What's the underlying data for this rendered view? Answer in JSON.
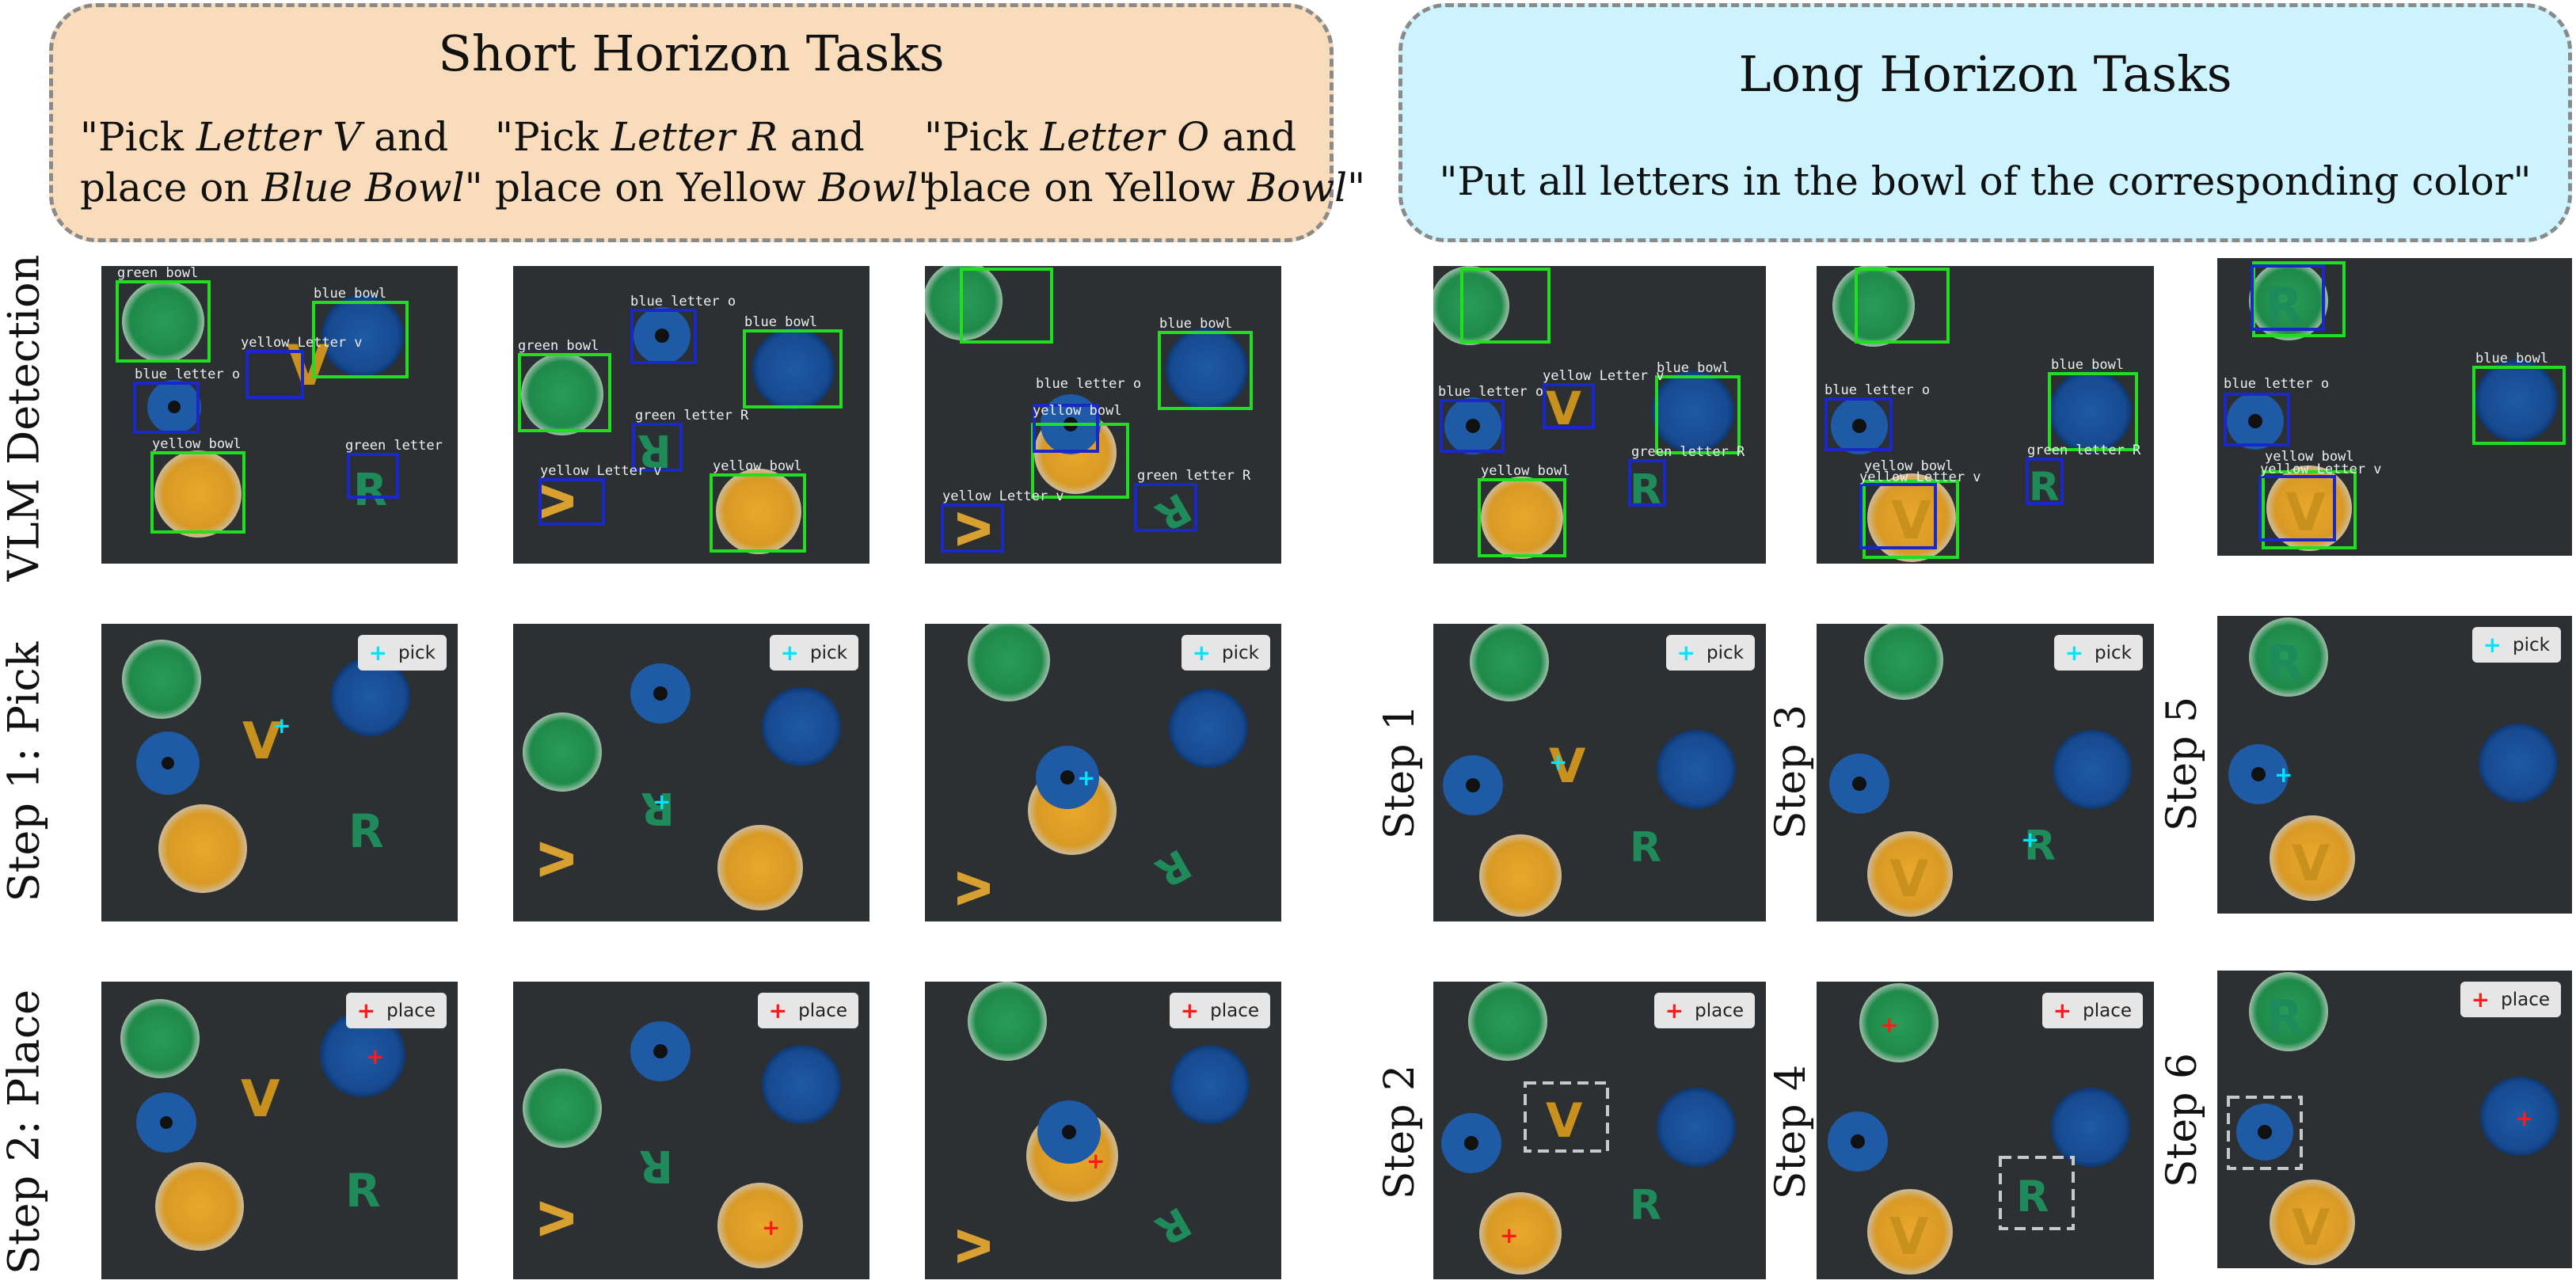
{
  "short_panel": {
    "title": "Short Horizon Tasks",
    "tasks": [
      {
        "l1a": "\"Pick ",
        "l1b": "Letter V",
        "l1c": " and",
        "l2a": "place on ",
        "l2b": "Blue Bowl",
        "l2c": "\""
      },
      {
        "l1a": "\"Pick ",
        "l1b": "Letter R",
        "l1c": " and",
        "l2a": "place on Yellow ",
        "l2b": "Bowl",
        "l2c": "\""
      },
      {
        "l1a": "\"Pick ",
        "l1b": "Letter O",
        "l1c": " and",
        "l2a": "place on Yellow ",
        "l2b": "Bowl",
        "l2c": "\""
      }
    ]
  },
  "long_panel": {
    "title": "Long Horizon Tasks",
    "instruction": "\"Put all letters in the bowl of the corresponding color\""
  },
  "row_labels": {
    "detection": "VLM Detection",
    "pick": "Step 1: Pick",
    "place": "Step 2: Place"
  },
  "step_labels": [
    "Step 1",
    "Step 2",
    "Step 3",
    "Step 4",
    "Step 5",
    "Step 6"
  ],
  "legend": {
    "pick": "pick",
    "place": "place",
    "pick_marker_color": "#00e5ff",
    "place_marker_color": "#ff1a1a"
  },
  "colors": {
    "bbox_bowl": "#22dd22",
    "bbox_letter": "#1a28c8",
    "short_bg": "#f8dcbb",
    "long_bg": "#cdf4fe",
    "dashed_box": "#c8c8c8"
  },
  "detection_labels": {
    "s1": [
      "green bowl",
      "blue bowl",
      "yellow Letter v",
      "blue letter o",
      "yellow bowl",
      "green letter"
    ],
    "s2": [
      "blue letter o",
      "blue bowl",
      "green bowl",
      "green letter R",
      "yellow Letter v",
      "yellow bowl"
    ],
    "s3": [
      "blue bowl",
      "blue letter o",
      "yellow bowl",
      "green letter R",
      "yellow Letter v"
    ],
    "l1": [
      "yellow Letter v",
      "blue bowl",
      "blue letter o",
      "green letter R",
      "yellow bowl"
    ],
    "l2": [
      "blue bowl",
      "blue letter o",
      "green letter R",
      "yellow bowl",
      "yellow Letter v"
    ],
    "l3": [
      "blue bowl",
      "blue letter o",
      "yellow bowl",
      "yellow Letter v"
    ]
  }
}
